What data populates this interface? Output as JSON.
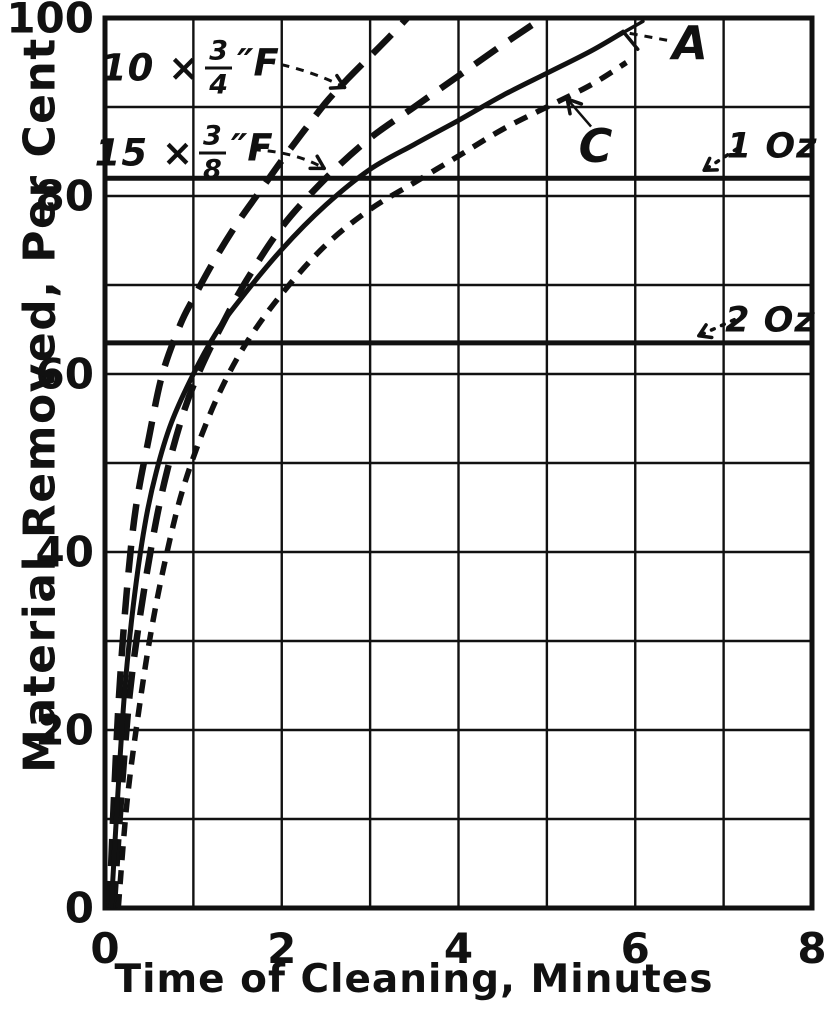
{
  "figure_background": "#ffffff",
  "ink_color": "#111111",
  "chart_data": {
    "type": "line",
    "title": "",
    "x_axis": {
      "label": "Time of Cleaning, Minutes",
      "min": 0,
      "max": 8,
      "grid_interval": 1,
      "ticks": [
        {
          "value": 0,
          "label": "0"
        },
        {
          "value": 2,
          "label": "2"
        },
        {
          "value": 4,
          "label": "4"
        },
        {
          "value": 6,
          "label": "6"
        },
        {
          "value": 8,
          "label": "8"
        }
      ]
    },
    "y_axis": {
      "label": "Material Removed, Per Cent",
      "min": 0,
      "max": 100,
      "grid_interval": 10,
      "ticks": [
        {
          "value": 0,
          "label": "0"
        },
        {
          "value": 20,
          "label": "20"
        },
        {
          "value": 40,
          "label": "40"
        },
        {
          "value": 60,
          "label": "60"
        },
        {
          "value": 80,
          "label": "80"
        },
        {
          "value": 100,
          "label": "100"
        }
      ]
    },
    "grid": "on",
    "reference_lines": [
      {
        "name": "1 Oz level",
        "pct": 82
      },
      {
        "name": "2 Oz level",
        "pct": 63.5
      }
    ],
    "series": [
      {
        "name": "10 x 3/4\" F",
        "style": "long-dash",
        "points": [
          [
            0.05,
            0
          ],
          [
            0.1,
            12
          ],
          [
            0.16,
            24
          ],
          [
            0.25,
            36
          ],
          [
            0.35,
            45
          ],
          [
            0.5,
            53
          ],
          [
            0.65,
            60
          ],
          [
            0.85,
            65.5
          ],
          [
            1.0,
            68.5
          ],
          [
            1.25,
            73
          ],
          [
            1.5,
            77
          ],
          [
            1.75,
            80.5
          ],
          [
            2.0,
            84
          ],
          [
            2.25,
            87.3
          ],
          [
            2.5,
            90.5
          ],
          [
            2.75,
            93.2
          ],
          [
            3.0,
            95.7
          ],
          [
            3.2,
            97.7
          ],
          [
            3.42,
            100
          ]
        ]
      },
      {
        "name": "15 x 3/8\" F",
        "style": "long-dash",
        "points": [
          [
            0.1,
            0
          ],
          [
            0.18,
            12
          ],
          [
            0.28,
            24
          ],
          [
            0.4,
            33
          ],
          [
            0.55,
            42
          ],
          [
            0.7,
            49
          ],
          [
            0.9,
            56
          ],
          [
            1.1,
            61
          ],
          [
            1.35,
            66
          ],
          [
            1.6,
            70.5
          ],
          [
            2.0,
            76.5
          ],
          [
            2.5,
            82
          ],
          [
            3.0,
            86.5
          ],
          [
            3.5,
            90
          ],
          [
            4.0,
            93.5
          ],
          [
            4.5,
            97
          ],
          [
            4.95,
            100
          ]
        ]
      },
      {
        "name": "A",
        "style": "solid",
        "points": [
          [
            0.07,
            0
          ],
          [
            0.14,
            12
          ],
          [
            0.22,
            24
          ],
          [
            0.32,
            34
          ],
          [
            0.45,
            43
          ],
          [
            0.58,
            49
          ],
          [
            0.75,
            54.5
          ],
          [
            1.0,
            60
          ],
          [
            1.25,
            64.5
          ],
          [
            1.5,
            68
          ],
          [
            2.0,
            74
          ],
          [
            2.5,
            79
          ],
          [
            3.0,
            83
          ],
          [
            3.5,
            85.8
          ],
          [
            4.0,
            88.5
          ],
          [
            4.5,
            91.3
          ],
          [
            5.0,
            93.8
          ],
          [
            5.5,
            96.3
          ],
          [
            5.88,
            98.5
          ]
        ]
      },
      {
        "name": "C",
        "style": "short-dash",
        "points": [
          [
            0.15,
            0
          ],
          [
            0.25,
            12
          ],
          [
            0.38,
            22
          ],
          [
            0.52,
            31
          ],
          [
            0.68,
            39
          ],
          [
            0.85,
            46
          ],
          [
            1.05,
            52
          ],
          [
            1.3,
            58
          ],
          [
            1.6,
            63.5
          ],
          [
            2.0,
            69
          ],
          [
            2.5,
            74.5
          ],
          [
            3.0,
            78.5
          ],
          [
            3.5,
            81.5
          ],
          [
            4.0,
            84.5
          ],
          [
            4.5,
            87.5
          ],
          [
            5.0,
            90
          ],
          [
            5.5,
            92.5
          ],
          [
            5.9,
            95
          ]
        ]
      }
    ],
    "annotations": [
      {
        "id": "f10",
        "prefix": "10 ×",
        "numerator": "3",
        "denominator": "4",
        "suffix": "″F",
        "label_at": {
          "t": 0.96,
          "pct": 94.4
        },
        "leader": [
          [
            1.83,
            95.1
          ],
          [
            2.32,
            94.2
          ],
          [
            2.71,
            92.2
          ]
        ],
        "leader_style": "dashed",
        "arrow_size": 14,
        "arrow_spread": 30
      },
      {
        "id": "f15",
        "prefix": "15 ×",
        "numerator": "3",
        "denominator": "8",
        "suffix": "″F",
        "label_at": {
          "t": 0.89,
          "pct": 84.8
        },
        "leader": [
          [
            1.67,
            85.2
          ],
          [
            2.15,
            85.0
          ],
          [
            2.48,
            83.1
          ]
        ],
        "leader_style": "dashed",
        "arrow_size": 14,
        "arrow_spread": 30
      },
      {
        "id": "A",
        "text": "A",
        "label_at": {
          "t": 6.62,
          "pct": 97.2
        },
        "leader": [
          [
            6.36,
            97.5
          ],
          [
            5.87,
            98.4
          ]
        ],
        "leader_style": "dashed",
        "arrow_size": 22,
        "arrow_spread": 40
      },
      {
        "id": "C",
        "text": "C",
        "label_at": {
          "t": 5.55,
          "pct": 85.6
        },
        "leader": [
          [
            5.5,
            87.8
          ],
          [
            5.23,
            90.9
          ]
        ],
        "leader_style": "solid",
        "arrow_size": 15,
        "arrow_spread": 30
      },
      {
        "id": "oz1",
        "text": "1 Oz",
        "label_at": {
          "t": 7.55,
          "pct": 85.5
        },
        "leader": [
          [
            7.15,
            85.3
          ],
          [
            6.78,
            82.9
          ]
        ],
        "leader_style": "dotted",
        "arrow_size": 13,
        "arrow_spread": 32
      },
      {
        "id": "oz2",
        "text": "2 Oz",
        "label_at": {
          "t": 7.53,
          "pct": 66.0
        },
        "leader": [
          [
            7.12,
            66.1
          ],
          [
            6.72,
            64.3
          ]
        ],
        "leader_style": "dotted",
        "arrow_size": 13,
        "arrow_spread": 32
      }
    ]
  }
}
